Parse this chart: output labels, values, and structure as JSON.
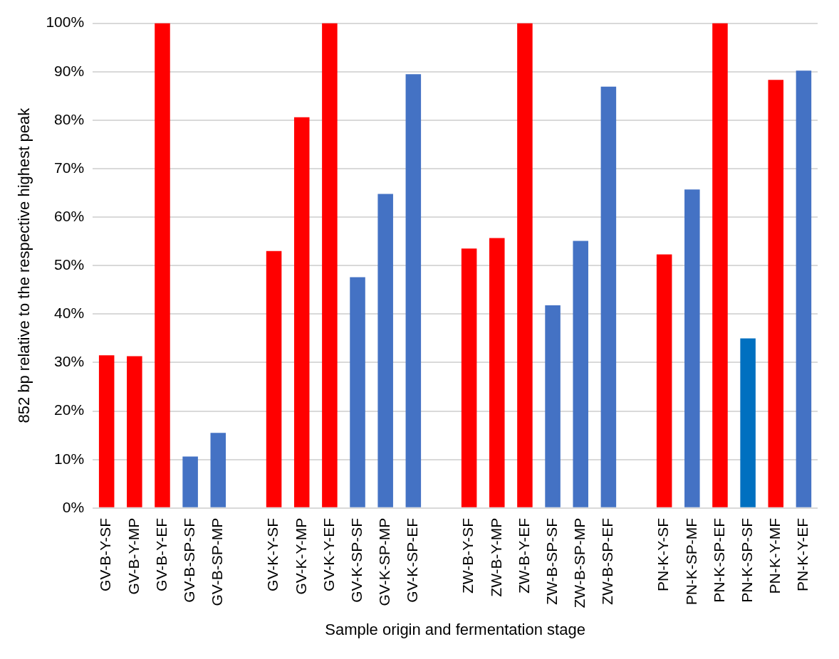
{
  "chart_data": {
    "type": "bar",
    "xlabel": "Sample origin and fermentation stage",
    "ylabel": "852 bp relative to the respective highest peak",
    "categories": [
      "GV-B-Y-SF",
      "GV-B-Y-MP",
      "GV-B-Y-EF",
      "GV-B-SP-SF",
      "GV-B-SP-MP",
      null,
      "GV-K-Y-SF",
      "GV-K-Y-MP",
      "GV-K-Y-EF",
      "GV-K-SP-SF",
      "GV-K-SP-MP",
      "GV-K-SP-EF",
      null,
      "ZW-B-Y-SF",
      "ZW-B-Y-MP",
      "ZW-B-Y-EF",
      "ZW-B-SP-SF",
      "ZW-B-SP-MP",
      "ZW-B-SP-EF",
      null,
      "PN-K-Y-SF",
      "PN-K-SP-MF",
      "PN-K-SP-EF",
      "PN-K-SP-SF",
      "PN-K-Y-MF",
      "PN-K-Y-EF"
    ],
    "values": [
      31.5,
      31.3,
      100,
      10.6,
      15.5,
      null,
      53,
      80.6,
      100,
      47.6,
      64.8,
      89.5,
      null,
      53.5,
      55.7,
      100,
      41.8,
      55.1,
      86.9,
      null,
      52.3,
      65.7,
      100,
      35,
      88.3,
      90.2
    ],
    "colors": [
      "#ff0000",
      "#ff0000",
      "#ff0000",
      "#4472c4",
      "#4472c4",
      null,
      "#ff0000",
      "#ff0000",
      "#ff0000",
      "#4472c4",
      "#4472c4",
      "#4472c4",
      null,
      "#ff0000",
      "#ff0000",
      "#ff0000",
      "#4472c4",
      "#4472c4",
      "#4472c4",
      null,
      "#ff0000",
      "#4472c4",
      "#ff0000",
      "#0070c0",
      "#ff0000",
      "#4472c4"
    ],
    "ylim": [
      0,
      100
    ],
    "yticks": [
      {
        "value": 0,
        "label": "0%"
      },
      {
        "value": 10,
        "label": "10%"
      },
      {
        "value": 20,
        "label": "20%"
      },
      {
        "value": 30,
        "label": "30%"
      },
      {
        "value": 40,
        "label": "40%"
      },
      {
        "value": 50,
        "label": "50%"
      },
      {
        "value": 60,
        "label": "60%"
      },
      {
        "value": 70,
        "label": "70%"
      },
      {
        "value": 80,
        "label": "80%"
      },
      {
        "value": 90,
        "label": "90%"
      },
      {
        "value": 100,
        "label": "100%"
      }
    ],
    "grid": "y",
    "legend": false
  }
}
